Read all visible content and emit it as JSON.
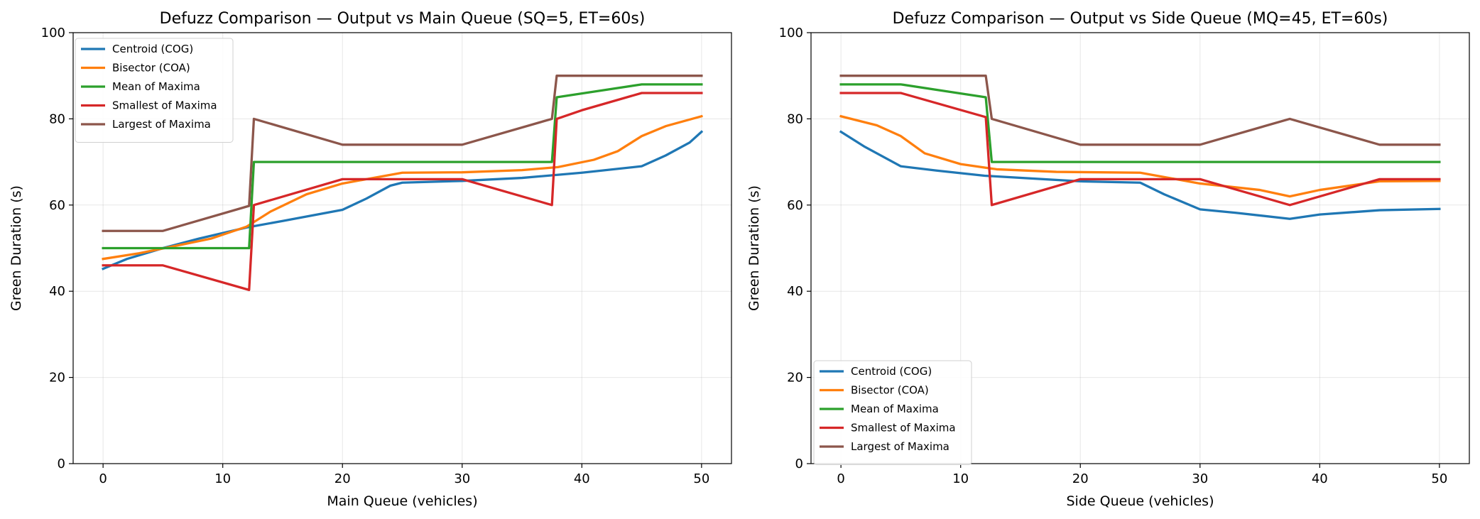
{
  "chart_data": [
    {
      "type": "line",
      "title": "Defuzz Comparison — Output vs Main Queue  (SQ=5, ET=60s)",
      "xlabel": "Main Queue (vehicles)",
      "ylabel": "Green Duration (s)",
      "xlim": [
        -2.5,
        52.5
      ],
      "ylim": [
        0,
        100
      ],
      "xticks": [
        0,
        10,
        20,
        30,
        40,
        50
      ],
      "yticks": [
        0,
        20,
        40,
        60,
        80,
        100
      ],
      "grid": true,
      "legend_position": "top-left",
      "series": [
        {
          "name": "Centroid (COG)",
          "color": "#1f77b4",
          "points": [
            [
              0,
              45.2
            ],
            [
              2,
              47.5
            ],
            [
              5,
              50
            ],
            [
              8,
              52.2
            ],
            [
              12,
              54.8
            ],
            [
              15,
              56.3
            ],
            [
              20,
              58.9
            ],
            [
              22,
              61.5
            ],
            [
              24,
              64.5
            ],
            [
              25,
              65.2
            ],
            [
              30,
              65.6
            ],
            [
              35,
              66.3
            ],
            [
              40,
              67.5
            ],
            [
              45,
              69
            ],
            [
              47,
              71.5
            ],
            [
              49,
              74.5
            ],
            [
              50,
              77
            ]
          ]
        },
        {
          "name": "Bisector (COA)",
          "color": "#ff7f0e",
          "points": [
            [
              0,
              47.5
            ],
            [
              3,
              48.8
            ],
            [
              6,
              50.5
            ],
            [
              9,
              52.2
            ],
            [
              12,
              55
            ],
            [
              14,
              58.5
            ],
            [
              17,
              62.5
            ],
            [
              20,
              65
            ],
            [
              25,
              67.5
            ],
            [
              30,
              67.6
            ],
            [
              35,
              68.1
            ],
            [
              38,
              68.8
            ],
            [
              41,
              70.5
            ],
            [
              43,
              72.5
            ],
            [
              45,
              76
            ],
            [
              47,
              78.3
            ],
            [
              50,
              80.6
            ]
          ]
        },
        {
          "name": "Mean of Maxima",
          "color": "#2ca02c",
          "points": [
            [
              0,
              50
            ],
            [
              12.2,
              50
            ],
            [
              12.6,
              70
            ],
            [
              37.5,
              70
            ],
            [
              37.9,
              85
            ],
            [
              45,
              88
            ],
            [
              50,
              88
            ]
          ]
        },
        {
          "name": "Smallest of Maxima",
          "color": "#d62728",
          "points": [
            [
              0,
              46
            ],
            [
              5,
              46
            ],
            [
              12.2,
              40.3
            ],
            [
              12.6,
              60
            ],
            [
              20,
              66
            ],
            [
              30,
              66
            ],
            [
              37.5,
              60
            ],
            [
              37.9,
              80
            ],
            [
              40,
              82
            ],
            [
              45,
              86
            ],
            [
              50,
              86
            ]
          ]
        },
        {
          "name": "Largest of Maxima",
          "color": "#8c564b",
          "points": [
            [
              0,
              54
            ],
            [
              5,
              54
            ],
            [
              12.2,
              59.8
            ],
            [
              12.6,
              80
            ],
            [
              20,
              74
            ],
            [
              30,
              74
            ],
            [
              37.5,
              80
            ],
            [
              37.9,
              90
            ],
            [
              50,
              90
            ]
          ]
        }
      ]
    },
    {
      "type": "line",
      "title": "Defuzz Comparison — Output vs Side Queue  (MQ=45, ET=60s)",
      "xlabel": "Side Queue (vehicles)",
      "ylabel": "Green Duration (s)",
      "xlim": [
        -2.5,
        52.5
      ],
      "ylim": [
        0,
        100
      ],
      "xticks": [
        0,
        10,
        20,
        30,
        40,
        50
      ],
      "yticks": [
        0,
        20,
        40,
        60,
        80,
        100
      ],
      "grid": true,
      "legend_position": "bottom-left",
      "series": [
        {
          "name": "Centroid (COG)",
          "color": "#1f77b4",
          "points": [
            [
              0,
              77
            ],
            [
              2,
              73.5
            ],
            [
              5,
              69
            ],
            [
              8,
              68
            ],
            [
              12,
              66.8
            ],
            [
              20,
              65.5
            ],
            [
              25,
              65.2
            ],
            [
              27,
              62.5
            ],
            [
              30,
              59
            ],
            [
              33,
              58.2
            ],
            [
              37.5,
              56.8
            ],
            [
              40,
              57.8
            ],
            [
              45,
              58.8
            ],
            [
              50,
              59.1
            ]
          ]
        },
        {
          "name": "Bisector (COA)",
          "color": "#ff7f0e",
          "points": [
            [
              0,
              80.6
            ],
            [
              3,
              78.5
            ],
            [
              5,
              76
            ],
            [
              7,
              72
            ],
            [
              10,
              69.5
            ],
            [
              13,
              68.3
            ],
            [
              18,
              67.7
            ],
            [
              25,
              67.5
            ],
            [
              27,
              66.5
            ],
            [
              30,
              65
            ],
            [
              35,
              63.5
            ],
            [
              37.5,
              62
            ],
            [
              40,
              63.5
            ],
            [
              45,
              65.5
            ],
            [
              50,
              65.6
            ]
          ]
        },
        {
          "name": "Mean of Maxima",
          "color": "#2ca02c",
          "points": [
            [
              0,
              88
            ],
            [
              5,
              88
            ],
            [
              12.1,
              85
            ],
            [
              12.6,
              70
            ],
            [
              50,
              70
            ]
          ]
        },
        {
          "name": "Smallest of Maxima",
          "color": "#d62728",
          "points": [
            [
              0,
              86
            ],
            [
              5,
              86
            ],
            [
              12.1,
              80.4
            ],
            [
              12.6,
              60
            ],
            [
              20,
              66
            ],
            [
              30,
              66
            ],
            [
              37.5,
              60
            ],
            [
              45,
              66
            ],
            [
              50,
              66
            ]
          ]
        },
        {
          "name": "Largest of Maxima",
          "color": "#8c564b",
          "points": [
            [
              0,
              90
            ],
            [
              12.1,
              90
            ],
            [
              12.6,
              80
            ],
            [
              20,
              74
            ],
            [
              30,
              74
            ],
            [
              37.5,
              80
            ],
            [
              45,
              74
            ],
            [
              50,
              74
            ]
          ]
        }
      ]
    }
  ]
}
